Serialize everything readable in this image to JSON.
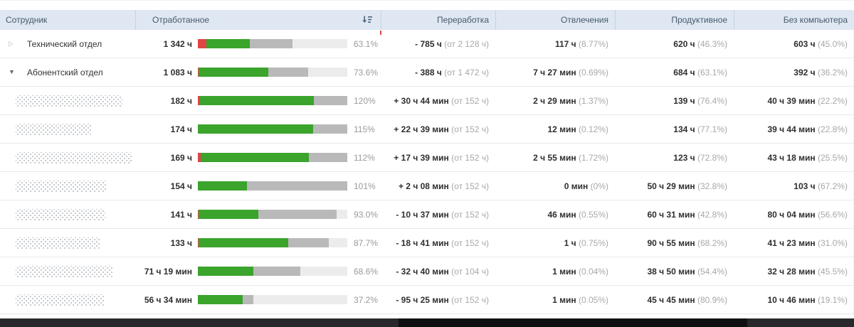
{
  "header": {
    "columns": [
      {
        "label": "Сотрудник"
      },
      {
        "label": "Отработанное"
      },
      {
        "label": "Переработка"
      },
      {
        "label": "Отвлечения"
      },
      {
        "label": "Продуктивное"
      },
      {
        "label": "Без компьютера"
      }
    ],
    "sort_icon": "sort-descending"
  },
  "colors": {
    "header_bg": "#dee7f2",
    "header_text": "#49596c",
    "bar_productive": "#3aa42c",
    "bar_distraction": "#df4545",
    "bar_neutral": "#b9b9b9",
    "bar_empty": "#ececec",
    "value_text": "#2e2e2e",
    "muted_text": "#a8a8a8"
  },
  "icons": {
    "expander_collapsed": "▷",
    "expander_expanded": "▼"
  },
  "rows": [
    {
      "type": "dept",
      "expander": "collapsed",
      "name": "Технический отдел",
      "worked": "1 342 ч",
      "percent": "63.1%",
      "bar": {
        "red": 5.5,
        "green": 29.1,
        "gray": 28.5
      },
      "overtime": {
        "value": "- 785 ч",
        "note": "(от 2 128 ч)"
      },
      "distraction": {
        "value": "117 ч",
        "note": "(8.77%)"
      },
      "productive": {
        "value": "620 ч",
        "note": "(46.3%)"
      },
      "nocomputer": {
        "value": "603 ч",
        "note": "(45.0%)"
      }
    },
    {
      "type": "dept",
      "expander": "expanded",
      "name": "Абонентский отдел",
      "worked": "1 083 ч",
      "percent": "73.6%",
      "bar": {
        "red": 0.5,
        "green": 46.5,
        "gray": 26.6
      },
      "overtime": {
        "value": "- 388 ч",
        "note": "(от 1 472 ч)"
      },
      "distraction": {
        "value": "7 ч 27 мин",
        "note": "(0.69%)"
      },
      "productive": {
        "value": "684 ч",
        "note": "(63.1%)"
      },
      "nocomputer": {
        "value": "392 ч",
        "note": "(36.2%)"
      }
    },
    {
      "type": "emp",
      "censor_width": 150,
      "worked": "182 ч",
      "percent": "120%",
      "bar": {
        "red": 1.4,
        "green": 76.4,
        "gray": 22.2
      },
      "overtime": {
        "value": "+ 30 ч 44 мин",
        "note": "(от 152 ч)"
      },
      "distraction": {
        "value": "2 ч 29 мин",
        "note": "(1.37%)"
      },
      "productive": {
        "value": "139 ч",
        "note": "(76.4%)"
      },
      "nocomputer": {
        "value": "40 ч 39 мин",
        "note": "(22.2%)"
      }
    },
    {
      "type": "emp",
      "censor_width": 106,
      "worked": "174 ч",
      "percent": "115%",
      "bar": {
        "red": 0,
        "green": 77.0,
        "gray": 23.0
      },
      "overtime": {
        "value": "+ 22 ч 39 мин",
        "note": "(от 152 ч)"
      },
      "distraction": {
        "value": "12 мин",
        "note": "(0.12%)"
      },
      "productive": {
        "value": "134 ч",
        "note": "(77.1%)"
      },
      "nocomputer": {
        "value": "39 ч 44 мин",
        "note": "(22.8%)"
      }
    },
    {
      "type": "emp",
      "censor_width": 163,
      "worked": "169 ч",
      "percent": "112%",
      "bar": {
        "red": 1.7,
        "green": 72.8,
        "gray": 25.5
      },
      "overtime": {
        "value": "+ 17 ч 39 мин",
        "note": "(от 152 ч)"
      },
      "distraction": {
        "value": "2 ч 55 мин",
        "note": "(1.72%)"
      },
      "productive": {
        "value": "123 ч",
        "note": "(72.8%)"
      },
      "nocomputer": {
        "value": "43 ч 18 мин",
        "note": "(25.5%)"
      }
    },
    {
      "type": "emp",
      "censor_width": 128,
      "worked": "154 ч",
      "percent": "101%",
      "bar": {
        "red": 0,
        "green": 32.8,
        "gray": 67.2
      },
      "overtime": {
        "value": "+ 2 ч 08 мин",
        "note": "(от 152 ч)"
      },
      "distraction": {
        "value": "0 мин",
        "note": "(0%)"
      },
      "productive": {
        "value": "50 ч 29 мин",
        "note": "(32.8%)"
      },
      "nocomputer": {
        "value": "103 ч",
        "note": "(67.2%)"
      }
    },
    {
      "type": "emp",
      "censor_width": 126,
      "worked": "141 ч",
      "percent": "93.0%",
      "bar": {
        "red": 0.5,
        "green": 39.8,
        "gray": 52.7
      },
      "overtime": {
        "value": "- 10 ч 37 мин",
        "note": "(от 152 ч)"
      },
      "distraction": {
        "value": "46 мин",
        "note": "(0.55%)"
      },
      "productive": {
        "value": "60 ч 31 мин",
        "note": "(42.8%)"
      },
      "nocomputer": {
        "value": "80 ч 04 мин",
        "note": "(56.6%)"
      }
    },
    {
      "type": "emp",
      "censor_width": 118,
      "worked": "133 ч",
      "percent": "87.7%",
      "bar": {
        "red": 0.7,
        "green": 59.8,
        "gray": 27.2
      },
      "overtime": {
        "value": "- 18 ч 41 мин",
        "note": "(от 152 ч)"
      },
      "distraction": {
        "value": "1 ч",
        "note": "(0.75%)"
      },
      "productive": {
        "value": "90 ч 55 мин",
        "note": "(68.2%)"
      },
      "nocomputer": {
        "value": "41 ч 23 мин",
        "note": "(31.0%)"
      }
    },
    {
      "type": "emp",
      "censor_width": 136,
      "worked": "71 ч 19 мин",
      "percent": "68.6%",
      "bar": {
        "red": 0,
        "green": 37.3,
        "gray": 31.3
      },
      "overtime": {
        "value": "- 32 ч 40 мин",
        "note": "(от 104 ч)"
      },
      "distraction": {
        "value": "1 мин",
        "note": "(0.04%)"
      },
      "productive": {
        "value": "38 ч 50 мин",
        "note": "(54.4%)"
      },
      "nocomputer": {
        "value": "32 ч 28 мин",
        "note": "(45.5%)"
      }
    },
    {
      "type": "emp",
      "censor_width": 125,
      "worked": "56 ч 34 мин",
      "percent": "37.2%",
      "bar": {
        "red": 0,
        "green": 30.1,
        "gray": 7.1
      },
      "overtime": {
        "value": "- 95 ч 25 мин",
        "note": "(от 152 ч)"
      },
      "distraction": {
        "value": "1 мин",
        "note": "(0.05%)"
      },
      "productive": {
        "value": "45 ч 45 мин",
        "note": "(80.9%)"
      },
      "nocomputer": {
        "value": "10 ч 46 мин",
        "note": "(19.1%)"
      }
    }
  ]
}
